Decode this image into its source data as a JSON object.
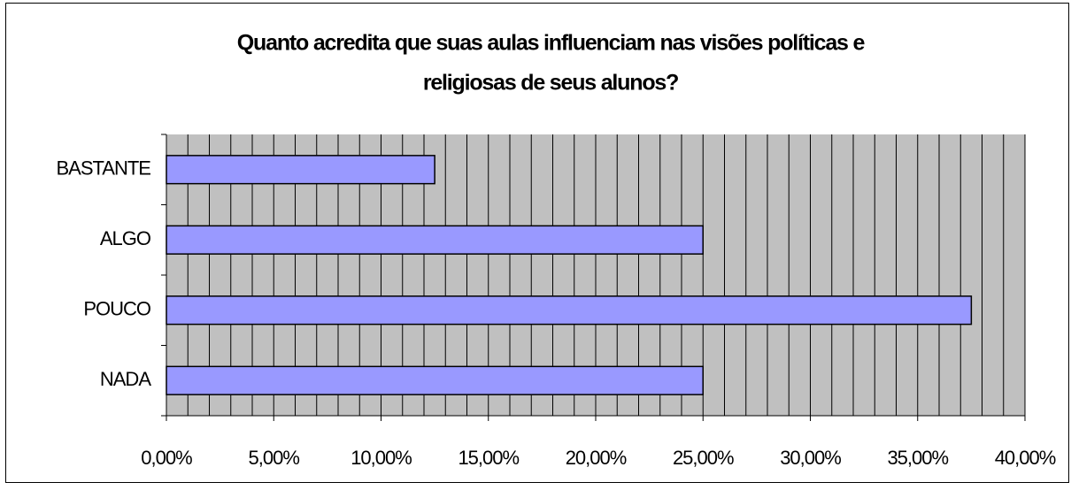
{
  "chart_data": {
    "type": "barh",
    "title": [
      "Quanto acredita que suas aulas influenciam nas visões políticas e",
      "religiosas de seus alunos?"
    ],
    "categories": [
      "BASTANTE",
      "ALGO",
      "POUCO",
      "NADA"
    ],
    "values": [
      12.5,
      25,
      37.5,
      25
    ],
    "color": "#9999ff",
    "xlim": [
      0,
      40
    ],
    "xticks": [
      {
        "value": 0,
        "label": "0,00%"
      },
      {
        "value": 5,
        "label": "5,00%"
      },
      {
        "value": 10,
        "label": "10,00%"
      },
      {
        "value": 15,
        "label": "15,00%"
      },
      {
        "value": 20,
        "label": "20,00%"
      },
      {
        "value": 25,
        "label": "25,00%"
      },
      {
        "value": 30,
        "label": "30,00%"
      },
      {
        "value": 35,
        "label": "35,00%"
      },
      {
        "value": 40,
        "label": "40,00%"
      }
    ],
    "x_minor_ticks": [
      0,
      1,
      2,
      3,
      4,
      5,
      6,
      7,
      8,
      9,
      10,
      11,
      12,
      13,
      14,
      15,
      16,
      17,
      18,
      19,
      20,
      21,
      22,
      23,
      24,
      25,
      26,
      27,
      28,
      29,
      30,
      31,
      32,
      33,
      34,
      35,
      36,
      37,
      38,
      39,
      40
    ],
    "grid": true,
    "plot_background": "#c0c0c0"
  }
}
